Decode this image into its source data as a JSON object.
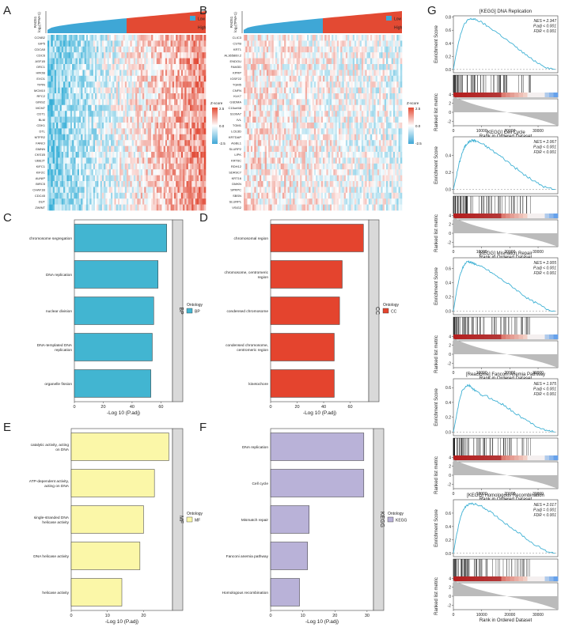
{
  "panels": {
    "A": {
      "letter": "A",
      "ylab1": "RAD51",
      "ylab2": "log₂(TPM+1)",
      "legend": [
        {
          "label": "Low",
          "color": "#3fa7d6"
        },
        {
          "label": "High",
          "color": "#e34a33"
        }
      ],
      "zscore_title": "Z-score",
      "zscore_ticks": [
        "2.5",
        "0.0",
        "-2.5"
      ],
      "genes": [
        "CCNB2",
        "GIP5",
        "CDCA5",
        "CDC6",
        "ASF1B",
        "ORC1",
        "HROB",
        "EXO1",
        "TIPIN",
        "MCM10",
        "RFC2",
        "GINS2",
        "MCM7",
        "CDT1",
        "BLM",
        "CDK1",
        "DTL",
        "MTFR2",
        "FANCI",
        "GMNN",
        "CKS1B",
        "UBE2T",
        "KIFC1",
        "KIF2C",
        "AUNIP",
        "BIRC5",
        "CHAF1B",
        "CDC45",
        "DUT",
        "ZWINT"
      ]
    },
    "B": {
      "letter": "B",
      "ylab1": "RAD51",
      "ylab2": "log₂(TPM+1)",
      "legend": [
        {
          "label": "Low",
          "color": "#3fa7d6"
        },
        {
          "label": "High",
          "color": "#e34a33"
        }
      ],
      "zscore_title": "Z-score",
      "zscore_ticks": [
        "2.5",
        "0.0",
        "-2.5"
      ],
      "genes": [
        "CLIC3",
        "CSTB",
        "KRT1",
        "AL365860.2",
        "ENDOU",
        "FAM3D",
        "KPRP",
        "IGSF22",
        "TGM5",
        "CNFN",
        "KLK7",
        "GSDMA",
        "C15orf48",
        "S100A7",
        "IVL",
        "TGM1",
        "LCE3D",
        "KRTDAP",
        "AGBL1",
        "SLURP2",
        "LIPK",
        "KRT6C",
        "RDH12",
        "SDR9C7",
        "KRT16",
        "DMKN",
        "SPRPC",
        "SBSN",
        "SLURP1",
        "VSIG2"
      ]
    },
    "C": {
      "letter": "C",
      "ontology_label": "BP",
      "legend_title": "Ontology",
      "legend_item": "BP",
      "color": "#42b5d1",
      "xlabel": "-Log 10 (P.adj)",
      "xticks": [
        0,
        20,
        40,
        60
      ],
      "xlim": [
        0,
        68
      ]
    },
    "D": {
      "letter": "D",
      "ontology_label": "CC",
      "legend_title": "Ontology",
      "legend_item": "CC",
      "color": "#e4442e",
      "xlabel": "-Log 10 (P.adj)",
      "xticks": [
        0,
        20,
        40,
        60
      ],
      "xlim": [
        0,
        74
      ]
    },
    "E": {
      "letter": "E",
      "ontology_label": "MF",
      "legend_title": "Ontology",
      "legend_item": "MF",
      "color": "#fbf7a8",
      "xlabel": "-Log 10 (P.adj)",
      "xticks": [
        0,
        10,
        20
      ],
      "xlim": [
        0,
        28
      ]
    },
    "F": {
      "letter": "F",
      "ontology_label": "KEGG",
      "legend_title": "Ontology",
      "legend_item": "KEGG",
      "color": "#b9b2d8",
      "xlabel": "-Log 10 (P.adj)",
      "xticks": [
        0,
        10,
        20,
        30
      ],
      "xlim": [
        0,
        32
      ]
    },
    "G": {
      "letter": "G",
      "ylabel_top": "Enrichment Score",
      "ylabel_bottom": "Ranked list metric",
      "xlabel": "Rank in Ordered Dataset",
      "xticks": [
        0,
        10000,
        20000,
        30000
      ]
    }
  },
  "chart_data": [
    {
      "type": "bar",
      "panel": "C",
      "categories": [
        "chromosome segregation",
        "DNA replication",
        "nuclear division",
        "DNA-templated DNA replication",
        "organelle fission"
      ],
      "values": [
        64,
        58,
        55,
        54,
        53
      ],
      "xlabel": "-Log 10 (P.adj)",
      "xlim": [
        0,
        68
      ]
    },
    {
      "type": "bar",
      "panel": "D",
      "categories": [
        "chromosomal region",
        "chromosome, centromeric region",
        "condensed chromosome",
        "condensed chromosome, centromeric region",
        "kinetochore"
      ],
      "values": [
        70,
        54,
        52,
        48,
        48
      ],
      "xlabel": "-Log 10 (P.adj)",
      "xlim": [
        0,
        74
      ]
    },
    {
      "type": "bar",
      "panel": "E",
      "categories": [
        "catalytic activity, acting on DNA",
        "ATP-dependent activity, acting on DNA",
        "single-stranded DNA helicase activity",
        "DNA helicase activity",
        "helicase activity"
      ],
      "values": [
        27,
        23,
        20,
        19,
        14
      ],
      "xlabel": "-Log 10 (P.adj)",
      "xlim": [
        0,
        28
      ]
    },
    {
      "type": "bar",
      "panel": "F",
      "categories": [
        "DNA replication",
        "Cell cycle",
        "Mismatch repair",
        "Fanconi anemia pathway",
        "Homologous recombination"
      ],
      "values": [
        29,
        29,
        12,
        11.5,
        9
      ],
      "xlabel": "-Log 10 (P.adj)",
      "xlim": [
        0,
        32
      ]
    },
    {
      "type": "line",
      "panel": "G",
      "title": "[KEGG] DNA Replication",
      "stats": [
        "NES = 2.347",
        "P.adj < 0.001",
        "FDR < 0.001"
      ],
      "x": [
        0,
        1000,
        2000,
        3000,
        4000,
        5000,
        6000,
        7000,
        8000,
        10000,
        12000,
        15000,
        18000,
        21000,
        24000,
        27000,
        30000,
        33000,
        36000
      ],
      "y": [
        0,
        0.25,
        0.45,
        0.6,
        0.7,
        0.75,
        0.77,
        0.77,
        0.76,
        0.72,
        0.66,
        0.58,
        0.48,
        0.38,
        0.28,
        0.18,
        0.1,
        0.03,
        0
      ],
      "ylim": [
        -0.05,
        0.82
      ],
      "yticks": [
        0.0,
        0.2,
        0.4,
        0.6,
        0.8
      ]
    },
    {
      "type": "line",
      "panel": "G",
      "title": "[KEGG] Cell Cycle",
      "stats": [
        "NES = 2.067",
        "P.adj < 0.001",
        "FDR < 0.001"
      ],
      "x": [
        0,
        1000,
        2000,
        3000,
        4000,
        5000,
        6000,
        7000,
        8000,
        10000,
        12000,
        15000,
        18000,
        21000,
        24000,
        27000,
        30000,
        33000,
        36000
      ],
      "y": [
        0,
        0.15,
        0.3,
        0.42,
        0.5,
        0.55,
        0.57,
        0.58,
        0.57,
        0.54,
        0.5,
        0.43,
        0.36,
        0.28,
        0.2,
        0.13,
        0.07,
        0.02,
        0
      ],
      "ylim": [
        -0.05,
        0.62
      ],
      "yticks": [
        0.0,
        0.2,
        0.4
      ]
    },
    {
      "type": "line",
      "panel": "G",
      "title": "[KEGG] Mismatch Repair",
      "stats": [
        "NES = 2.005",
        "P.adj < 0.001",
        "FDR < 0.001"
      ],
      "x": [
        0,
        1000,
        2000,
        3000,
        4000,
        5000,
        6000,
        7000,
        8000,
        10000,
        12000,
        15000,
        18000,
        21000,
        24000,
        27000,
        30000,
        33000,
        36000
      ],
      "y": [
        0,
        0.25,
        0.45,
        0.58,
        0.66,
        0.7,
        0.69,
        0.67,
        0.66,
        0.62,
        0.58,
        0.5,
        0.42,
        0.34,
        0.25,
        0.16,
        0.1,
        0.03,
        0
      ],
      "ylim": [
        -0.05,
        0.75
      ],
      "yticks": [
        0.0,
        0.2,
        0.4,
        0.6
      ]
    },
    {
      "type": "line",
      "panel": "G",
      "title": "[Reactome] Fanconi Anemia Pathway",
      "stats": [
        "NES = 1.975",
        "P.adj < 0.001",
        "FDR < 0.001"
      ],
      "x": [
        0,
        1000,
        2000,
        3000,
        4000,
        5000,
        6000,
        7000,
        8000,
        10000,
        12000,
        15000,
        18000,
        21000,
        24000,
        27000,
        30000,
        33000,
        36000
      ],
      "y": [
        0,
        0.2,
        0.4,
        0.55,
        0.6,
        0.63,
        0.62,
        0.58,
        0.55,
        0.5,
        0.48,
        0.42,
        0.36,
        0.28,
        0.2,
        0.13,
        0.07,
        0.02,
        0
      ],
      "ylim": [
        -0.05,
        0.72
      ],
      "yticks": [
        0.0,
        0.2,
        0.4,
        0.6
      ]
    },
    {
      "type": "line",
      "panel": "G",
      "title": "[KEGG] Homologous Recombination",
      "stats": [
        "NES = 2.017",
        "P.adj = 0.001",
        "FDR < 0.001"
      ],
      "x": [
        0,
        1000,
        2000,
        3000,
        4000,
        5000,
        6000,
        7000,
        8000,
        10000,
        12000,
        15000,
        18000,
        21000,
        24000,
        27000,
        30000,
        33000,
        36000
      ],
      "y": [
        0,
        0.25,
        0.45,
        0.6,
        0.68,
        0.72,
        0.74,
        0.74,
        0.73,
        0.7,
        0.65,
        0.56,
        0.46,
        0.37,
        0.28,
        0.18,
        0.1,
        0.03,
        0
      ],
      "ylim": [
        -0.05,
        0.8
      ],
      "yticks": [
        0.0,
        0.2,
        0.4,
        0.6
      ]
    }
  ]
}
